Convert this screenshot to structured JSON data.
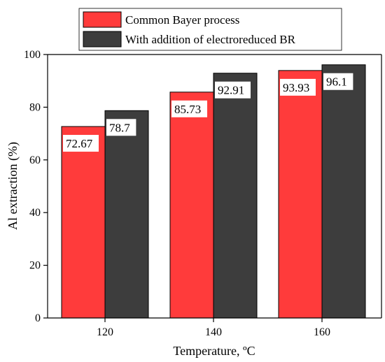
{
  "chart_data": {
    "type": "bar",
    "title": "",
    "xlabel": "Temperature, ºC",
    "ylabel": "Al extraction (%)",
    "categories": [
      "120",
      "140",
      "160"
    ],
    "ylim": [
      0,
      100
    ],
    "yticks": [
      0,
      20,
      40,
      60,
      80,
      100
    ],
    "grid": false,
    "legend_position": "top",
    "series": [
      {
        "name": "Common Bayer process",
        "values": [
          72.67,
          85.73,
          93.93
        ],
        "labels": [
          "72.67",
          "85.73",
          "93.93"
        ],
        "color": "#ff3b3b"
      },
      {
        "name": "With addition of electroreduced BR",
        "values": [
          78.7,
          92.91,
          96.1
        ],
        "labels": [
          "78.7",
          "92.91",
          "96.1"
        ],
        "color": "#3d3d3d"
      }
    ]
  }
}
